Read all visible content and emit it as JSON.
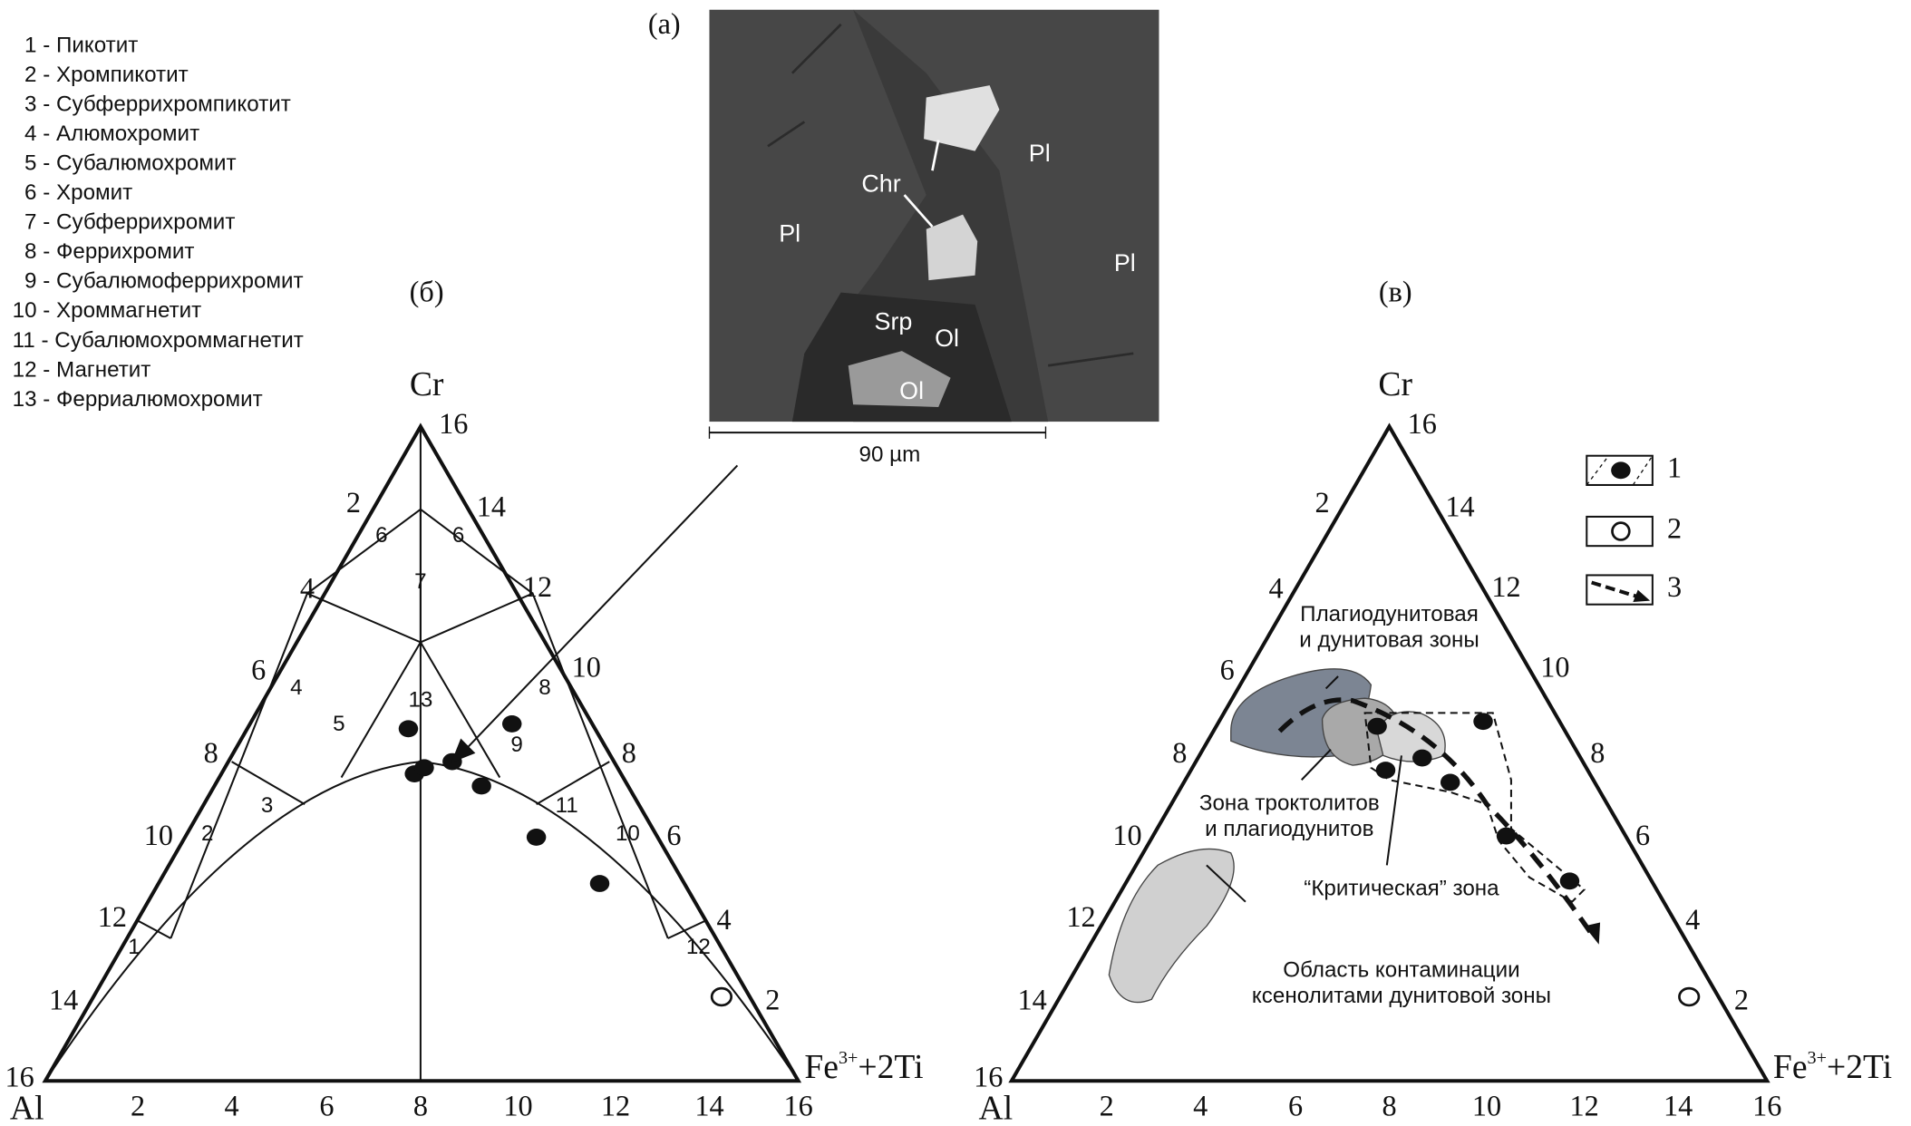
{
  "legend_list": [
    "1 - Пикотит",
    "2 - Хромпикотит",
    "3 - Субферрихромпикотит",
    "4 - Алюмохромит",
    "5 - Субалюмохромит",
    "6 - Хромит",
    "7 - Субферрихромит",
    "8 - Феррихромит",
    "9 - Субалюмоферрихромит",
    "10 - Хроммагнетит",
    "11 - Субалюмохроммагнетит",
    "12 - Магнетит",
    "13 - Ферриалюмохромит"
  ],
  "panel_a": {
    "label": "(а)",
    "phases": [
      "Chr",
      "Pl",
      "Pl",
      "Pl",
      "Srp",
      "Ol",
      "Ol"
    ],
    "scale": "90 µm"
  },
  "panel_b": {
    "label": "(б)",
    "apex": "Cr",
    "apex_value": 16,
    "left_corner": "Al",
    "left_corner_value": 16,
    "right_corner": {
      "base": "Fe",
      "sup": "3+",
      "rest": "+2Ti"
    },
    "left_edge_ticks": [
      2,
      4,
      6,
      8,
      10,
      12,
      14
    ],
    "right_edge_ticks": [
      14,
      12,
      10,
      8,
      6,
      4,
      2
    ],
    "bottom_ticks": [
      2,
      4,
      6,
      8,
      10,
      12,
      14,
      16
    ],
    "regions": [
      6,
      4,
      2,
      1,
      6,
      8,
      10,
      12,
      7,
      13,
      5,
      9,
      3,
      11
    ]
  },
  "panel_c": {
    "label": "(в)",
    "apex": "Cr",
    "apex_value": 16,
    "left_corner": "Al",
    "left_corner_value": 16,
    "right_corner": {
      "base": "Fe",
      "sup": "3+",
      "rest": "+2Ti"
    },
    "left_edge_ticks": [
      2,
      4,
      6,
      8,
      10,
      12,
      14
    ],
    "right_edge_ticks": [
      14,
      12,
      10,
      8,
      6,
      4,
      2
    ],
    "bottom_ticks": [
      2,
      4,
      6,
      8,
      10,
      12,
      14,
      16
    ],
    "annotations": [
      [
        "Плагиодунитовая",
        "и дунитовая зоны"
      ],
      [
        "Зона троктолитов",
        "и плагиодунитов"
      ],
      [
        "“Критическая” зона"
      ],
      [
        "Область контаминации",
        "ксенолитами дунитовой зоны"
      ]
    ],
    "legend": [
      1,
      2,
      3
    ]
  }
}
